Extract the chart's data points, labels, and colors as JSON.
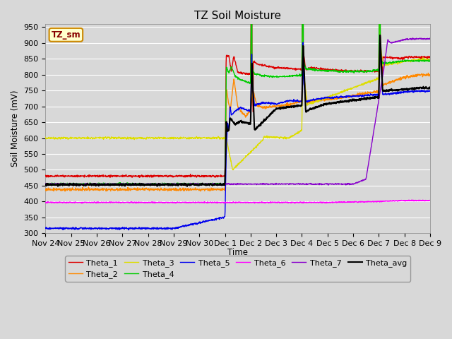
{
  "title": "TZ Soil Moisture",
  "xlabel": "Time",
  "ylabel": "Soil Moisture (mV)",
  "ylim": [
    300,
    960
  ],
  "yticks": [
    300,
    350,
    400,
    450,
    500,
    550,
    600,
    650,
    700,
    750,
    800,
    850,
    900,
    950
  ],
  "background_color": "#d8d8d8",
  "plot_bg_color": "#d8d8d8",
  "grid_color": "#ffffff",
  "label_box": "TZ_sm",
  "label_box_bg": "#ffffcc",
  "label_box_border": "#cc8800",
  "series_colors": {
    "Theta_1": "#dd0000",
    "Theta_2": "#ff8800",
    "Theta_3": "#dddd00",
    "Theta_4": "#00cc00",
    "Theta_5": "#0000ee",
    "Theta_6": "#ff00ff",
    "Theta_7": "#8800cc",
    "Theta_avg": "#000000"
  },
  "date_labels": [
    "Nov 24",
    "Nov 25",
    "Nov 26",
    "Nov 27",
    "Nov 28",
    "Nov 29",
    "Nov 30",
    "Dec 1",
    "Dec 2",
    "Dec 3",
    "Dec 4",
    "Dec 5",
    "Dec 6",
    "Dec 7",
    "Dec 8",
    "Dec 9"
  ],
  "n_points": 1500,
  "figsize": [
    6.4,
    4.8
  ],
  "dpi": 100
}
